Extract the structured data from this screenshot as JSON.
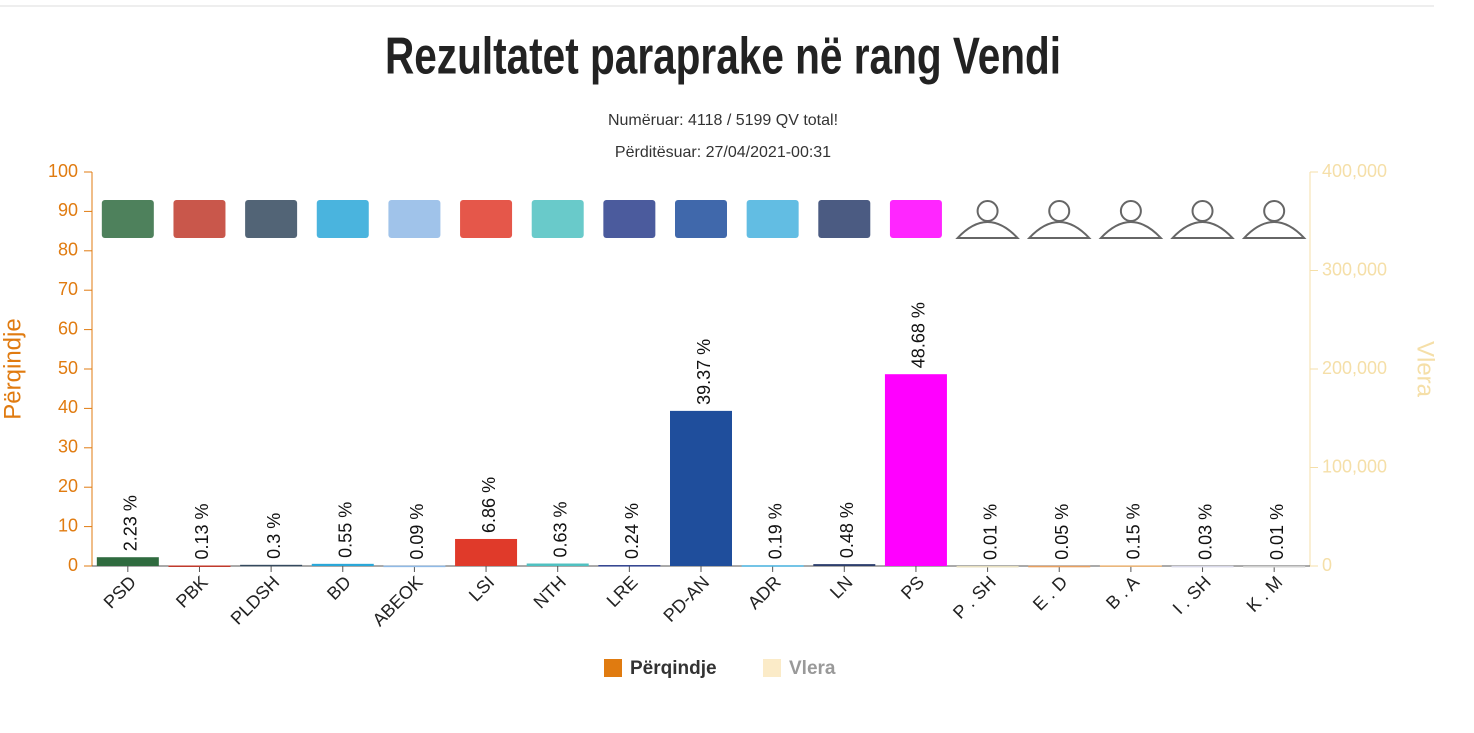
{
  "chart_data": {
    "type": "bar",
    "title": "Rezultatet paraprake në rang Vendi",
    "subtitle": [
      "Numëruar: 4118 / 5199 QV total!",
      "Përditësuar: 27/04/2021-00:31"
    ],
    "categories": [
      "PSD",
      "PBK",
      "PLDSH",
      "BD",
      "ABEOK",
      "LSI",
      "NTH",
      "LRE",
      "PD-AN",
      "ADR",
      "LN",
      "PS",
      "P . SH",
      "E . D",
      "B . A",
      "I . SH",
      "K . M"
    ],
    "values": [
      2.23,
      0.13,
      0.3,
      0.55,
      0.09,
      6.86,
      0.63,
      0.24,
      39.37,
      0.19,
      0.48,
      48.68,
      0.01,
      0.05,
      0.15,
      0.03,
      0.01
    ],
    "value_labels": [
      "2.23 %",
      "0.13 %",
      "0.3 %",
      "0.55 %",
      "0.09 %",
      "6.86 %",
      "0.63 %",
      "0.24 %",
      "39.37 %",
      "0.19 %",
      "0.48 %",
      "48.68 %",
      "0.01 %",
      "0.05 %",
      "0.15 %",
      "0.03 %",
      "0.01 %"
    ],
    "colors": [
      "#2f6b3f",
      "#c0392b",
      "#34495e",
      "#2aa7d8",
      "#8fb9e6",
      "#e03a2a",
      "#4fc1c1",
      "#2c3e8c",
      "#1f4e9c",
      "#46b1de",
      "#2c3e6c",
      "#ff00ff",
      "#e8e0c0",
      "#e8a060",
      "#e8b070",
      "#d8d8e8",
      "#d0d0d0"
    ],
    "y_label": "Përqindje",
    "y2_label": "Vlera",
    "ylim": [
      0,
      100
    ],
    "yticks": [
      0,
      10,
      20,
      30,
      40,
      50,
      60,
      70,
      80,
      90,
      100
    ],
    "y2lim": [
      0,
      400000
    ],
    "y2ticks": [
      0,
      {
        "value": 100000,
        "label": "100,000"
      },
      {
        "value": 200000,
        "label": "200,000"
      },
      {
        "value": 300000,
        "label": "300,000"
      },
      {
        "value": 400000,
        "label": "400,000"
      }
    ],
    "legend": [
      {
        "name": "Përqindje",
        "color": "#e07b10"
      },
      {
        "name": "Vlera",
        "color": "#fbebc8"
      }
    ]
  }
}
